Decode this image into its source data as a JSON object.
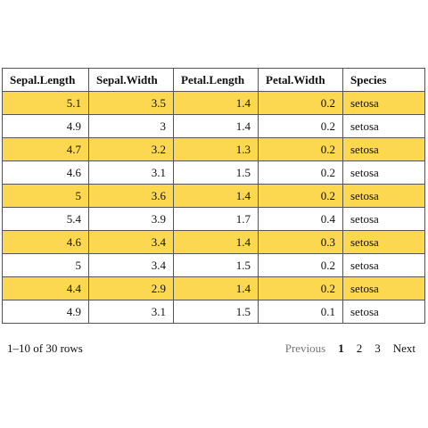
{
  "table": {
    "columns": [
      "Sepal.Length",
      "Sepal.Width",
      "Petal.Length",
      "Petal.Width",
      "Species"
    ],
    "rows": [
      [
        "5.1",
        "3.5",
        "1.4",
        "0.2",
        "setosa"
      ],
      [
        "4.9",
        "3",
        "1.4",
        "0.2",
        "setosa"
      ],
      [
        "4.7",
        "3.2",
        "1.3",
        "0.2",
        "setosa"
      ],
      [
        "4.6",
        "3.1",
        "1.5",
        "0.2",
        "setosa"
      ],
      [
        "5",
        "3.6",
        "1.4",
        "0.2",
        "setosa"
      ],
      [
        "5.4",
        "3.9",
        "1.7",
        "0.4",
        "setosa"
      ],
      [
        "4.6",
        "3.4",
        "1.4",
        "0.3",
        "setosa"
      ],
      [
        "5",
        "3.4",
        "1.5",
        "0.2",
        "setosa"
      ],
      [
        "4.4",
        "2.9",
        "1.4",
        "0.2",
        "setosa"
      ],
      [
        "4.9",
        "3.1",
        "1.5",
        "0.1",
        "setosa"
      ]
    ],
    "highlight_color": "#fbd84f"
  },
  "footer": {
    "row_summary": "1–10 of 30 rows"
  },
  "pagination": {
    "previous_label": "Previous",
    "pages": [
      "1",
      "2",
      "3"
    ],
    "current_page": "1",
    "next_label": "Next"
  }
}
